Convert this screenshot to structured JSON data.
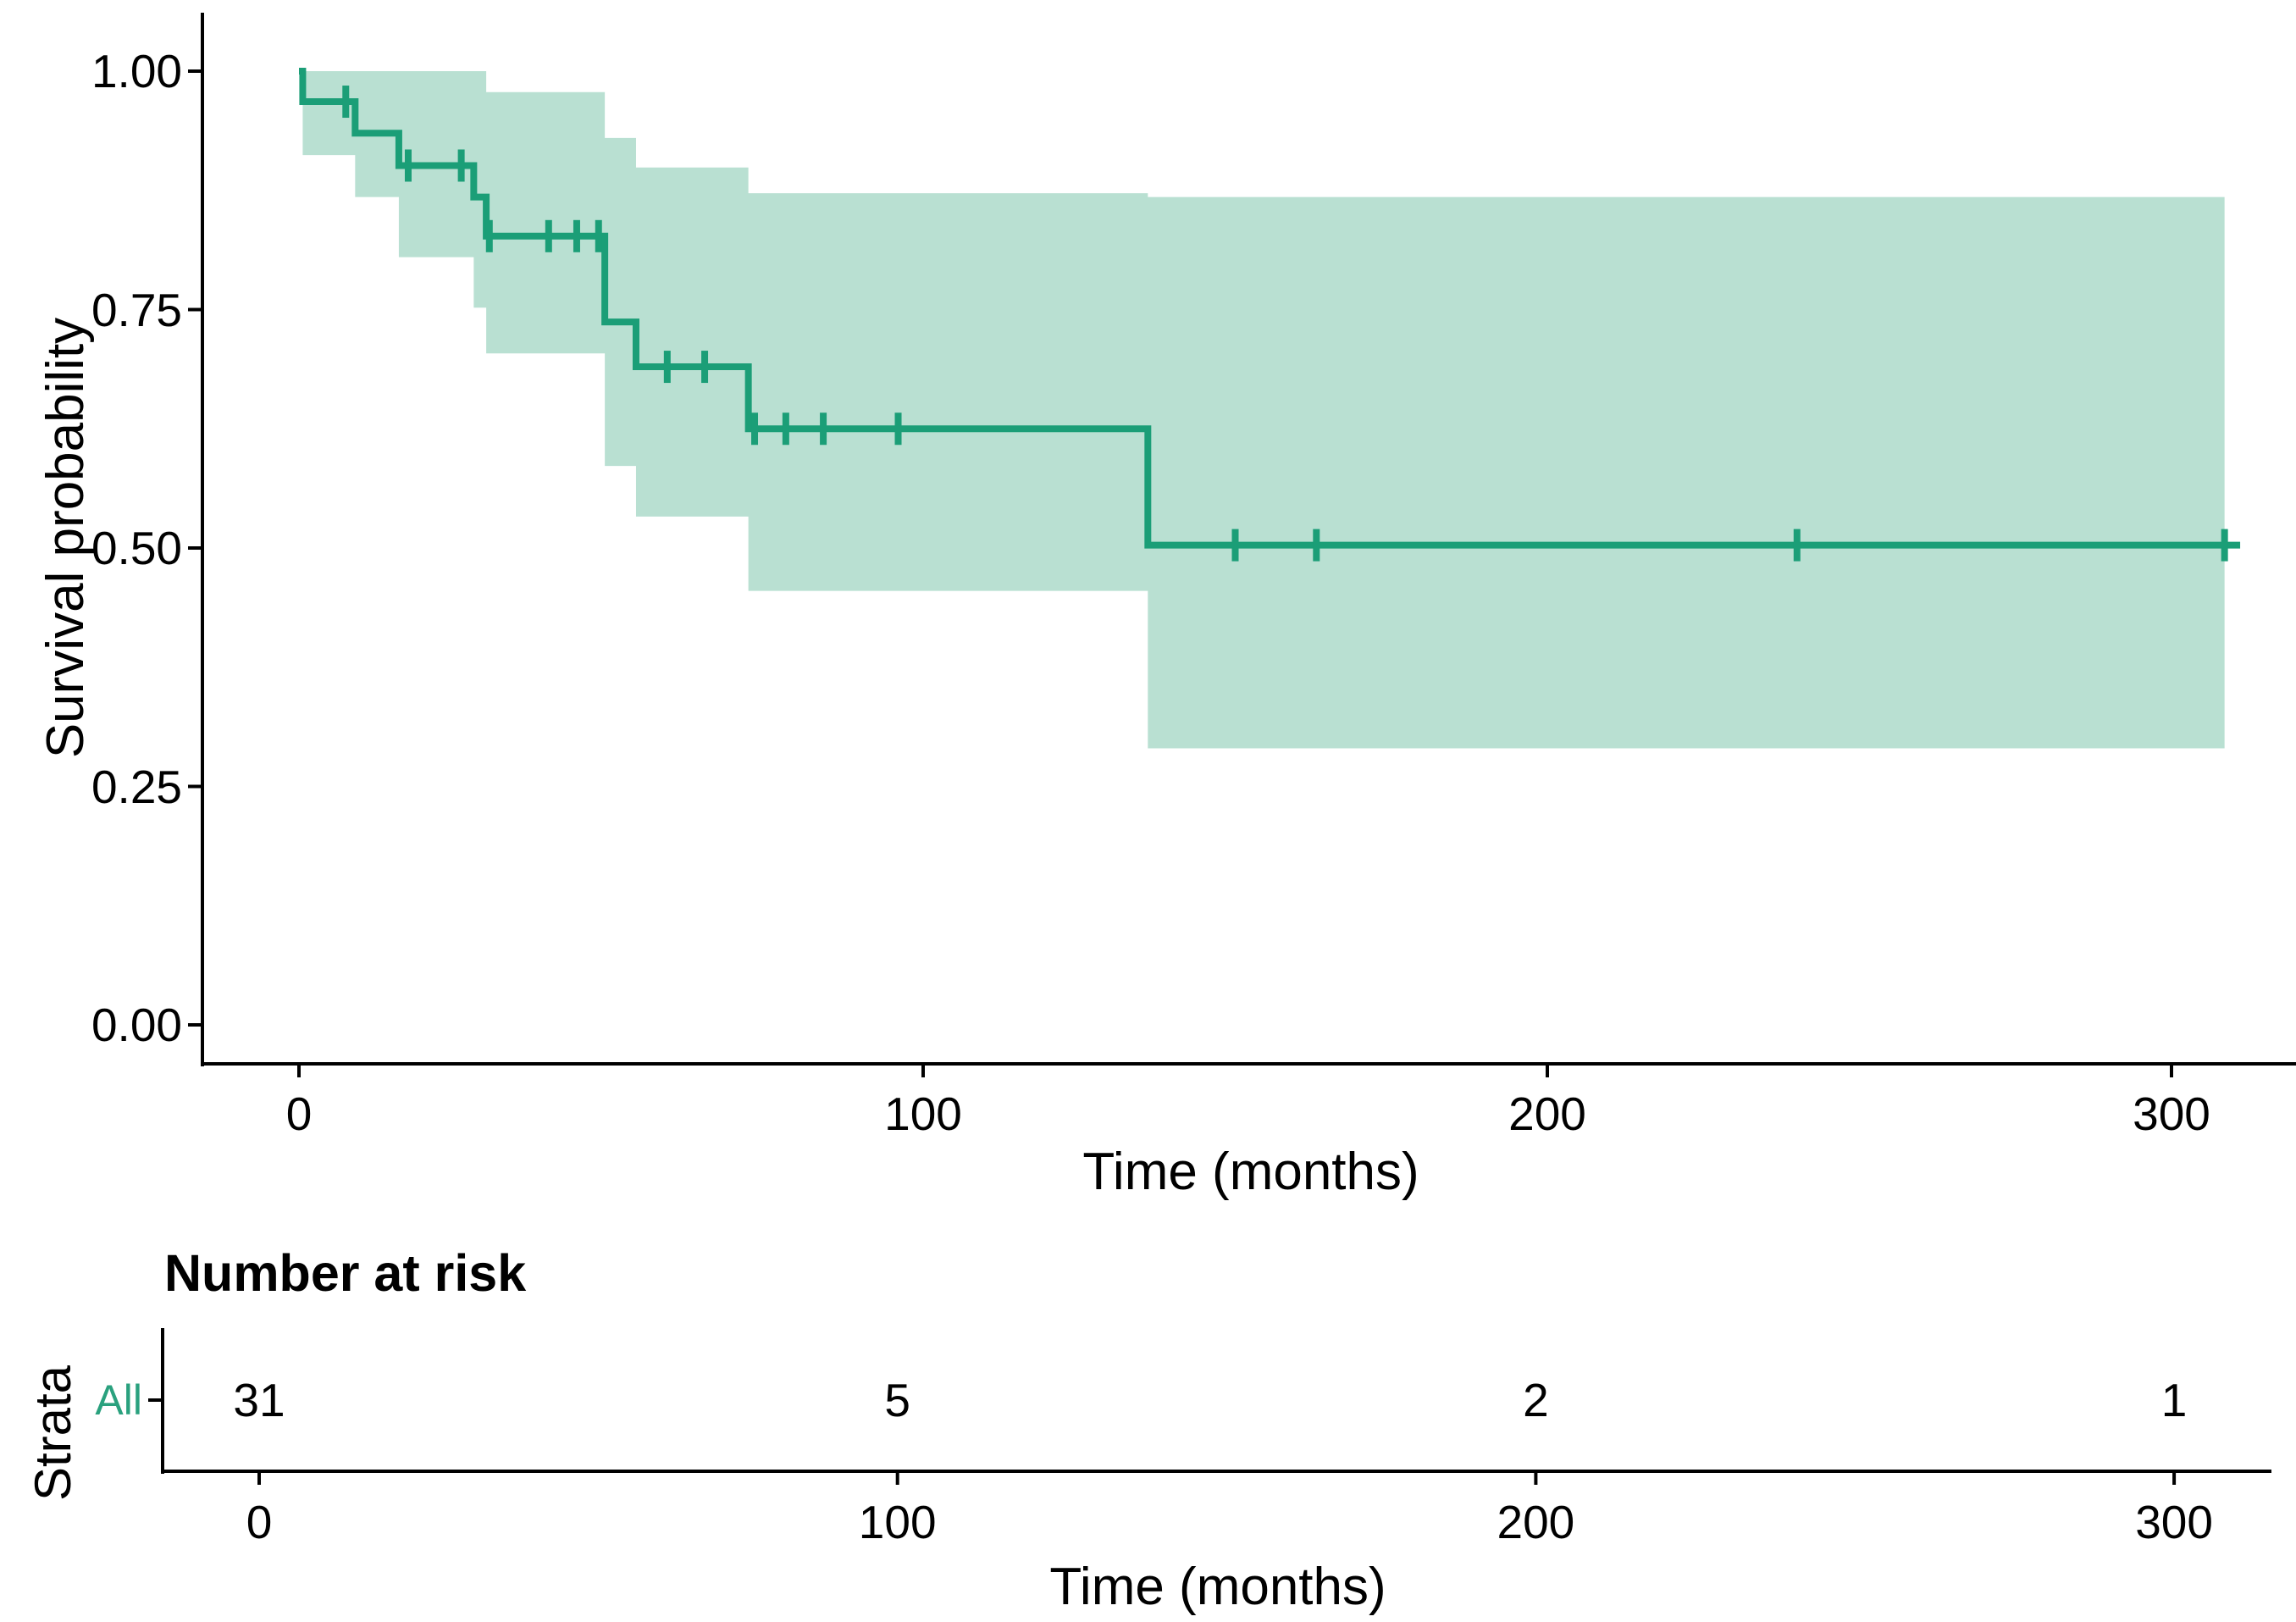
{
  "chart_data": {
    "type": "line",
    "subtype": "kaplan-meier-survival-curve",
    "title": "",
    "xlabel": "Time (months)",
    "ylabel": "Survival probability",
    "grid": "off",
    "legend": "none",
    "xlim": [
      0,
      320
    ],
    "ylim": [
      0,
      1.05
    ],
    "x_ticks": [
      0,
      100,
      200,
      300
    ],
    "y_ticks": [
      {
        "label": "1.00",
        "v": 1.0
      },
      {
        "label": "0.75",
        "v": 0.75
      },
      {
        "label": "0.50",
        "v": 0.5
      },
      {
        "label": "0.25",
        "v": 0.25
      },
      {
        "label": "0.00",
        "v": 0.0
      }
    ],
    "series": [
      {
        "name": "All",
        "color": "#1b9e77",
        "steps": [
          [
            0,
            1.0
          ],
          [
            0.6,
            0.968
          ],
          [
            9,
            0.935
          ],
          [
            16,
            0.901
          ],
          [
            28,
            0.868
          ],
          [
            30,
            0.827
          ],
          [
            49,
            0.737
          ],
          [
            54,
            0.69
          ],
          [
            72,
            0.625
          ],
          [
            136,
            0.503
          ]
        ],
        "end_time": 311,
        "censors": [
          [
            7.5,
            0.968
          ],
          [
            17.5,
            0.901
          ],
          [
            26,
            0.901
          ],
          [
            30.5,
            0.827
          ],
          [
            40,
            0.827
          ],
          [
            44.5,
            0.827
          ],
          [
            48,
            0.827
          ],
          [
            59,
            0.69
          ],
          [
            65,
            0.69
          ],
          [
            73,
            0.625
          ],
          [
            78,
            0.625
          ],
          [
            84,
            0.625
          ],
          [
            96,
            0.625
          ],
          [
            150,
            0.503
          ],
          [
            163,
            0.503
          ],
          [
            240,
            0.503
          ],
          [
            308.5,
            0.503
          ]
        ],
        "confidence_band": {
          "fill": "#b9e0d2",
          "steps": [
            [
              0.6,
              1.0,
              0.912
            ],
            [
              9,
              1.0,
              0.868
            ],
            [
              16,
              1.0,
              0.805
            ],
            [
              28,
              1.0,
              0.752
            ],
            [
              30,
              0.978,
              0.704
            ],
            [
              49,
              0.93,
              0.586
            ],
            [
              54,
              0.899,
              0.533
            ],
            [
              72,
              0.872,
              0.455
            ],
            [
              136,
              0.868,
              0.29
            ]
          ],
          "end_time": 308.5
        }
      }
    ],
    "risk_table": {
      "title": "Number at risk",
      "axis_label": "Strata",
      "xlabel": "Time (months)",
      "time_points": [
        0,
        100,
        200,
        300
      ],
      "rows": [
        {
          "label": "All",
          "color": "#2aa17e",
          "values": [
            "31",
            "5",
            "2",
            "1"
          ]
        }
      ]
    }
  },
  "colors": {
    "curve": "#1b9e77",
    "band": "#b9e0d2",
    "axis": "#000000",
    "text": "#000000",
    "risk_label": "#2aa17e",
    "background": "#ffffff"
  }
}
